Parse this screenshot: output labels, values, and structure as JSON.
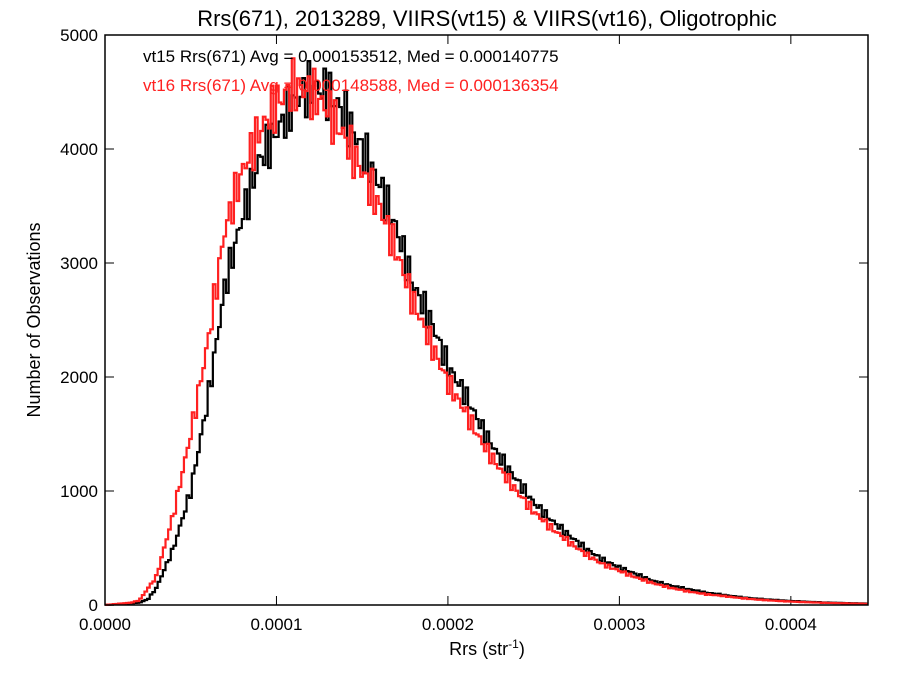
{
  "chart_data": {
    "type": "histogram",
    "title": "Rrs(671), 2013289, VIIRS(vt15) & VIIRS(vt16), Oligotrophic",
    "xlabel": "Rrs (str",
    "xlabel_sup": "-1",
    "xlabel_close": ")",
    "ylabel": "Number of Observations",
    "xlim": [
      0.0,
      0.000445
    ],
    "ylim": [
      0,
      5000
    ],
    "xticks": [
      0.0,
      0.0001,
      0.0002,
      0.0003,
      0.0004
    ],
    "xtick_labels": [
      "0.0000",
      "0.0001",
      "0.0002",
      "0.0003",
      "0.0004"
    ],
    "yticks": [
      0,
      1000,
      2000,
      3000,
      4000,
      5000
    ],
    "ytick_labels": [
      "0",
      "1000",
      "2000",
      "3000",
      "4000",
      "5000"
    ],
    "legend_placement": "top-left",
    "grid": false,
    "series": [
      {
        "name": "vt15",
        "label": "vt15 Rrs(671) Avg = 0.000153512, Med = 0.000140775",
        "color": "#000000",
        "points": [
          [
            0.0,
            0
          ],
          [
            2e-05,
            20
          ],
          [
            2.5e-05,
            50
          ],
          [
            3e-05,
            150
          ],
          [
            4e-05,
            500
          ],
          [
            5e-05,
            1000
          ],
          [
            6e-05,
            1800
          ],
          [
            7e-05,
            2800
          ],
          [
            8e-05,
            3400
          ],
          [
            9e-05,
            3900
          ],
          [
            0.0001,
            4150
          ],
          [
            0.00011,
            4400
          ],
          [
            0.00012,
            4550
          ],
          [
            0.00013,
            4500
          ],
          [
            0.00014,
            4300
          ],
          [
            0.00015,
            4000
          ],
          [
            0.00016,
            3700
          ],
          [
            0.00017,
            3300
          ],
          [
            0.00018,
            2800
          ],
          [
            0.00019,
            2500
          ],
          [
            0.0002,
            2100
          ],
          [
            0.00021,
            1850
          ],
          [
            0.00022,
            1550
          ],
          [
            0.00023,
            1300
          ],
          [
            0.00024,
            1100
          ],
          [
            0.00025,
            900
          ],
          [
            0.00026,
            750
          ],
          [
            0.00027,
            620
          ],
          [
            0.00028,
            500
          ],
          [
            0.00029,
            400
          ],
          [
            0.0003,
            330
          ],
          [
            0.00031,
            270
          ],
          [
            0.00032,
            210
          ],
          [
            0.00033,
            170
          ],
          [
            0.00034,
            140
          ],
          [
            0.00035,
            110
          ],
          [
            0.00036,
            90
          ],
          [
            0.00037,
            70
          ],
          [
            0.00038,
            55
          ],
          [
            0.00039,
            45
          ],
          [
            0.0004,
            35
          ],
          [
            0.00041,
            28
          ],
          [
            0.00042,
            22
          ],
          [
            0.00043,
            18
          ],
          [
            0.00044,
            14
          ],
          [
            0.000445,
            12
          ]
        ]
      },
      {
        "name": "vt16",
        "label": "vt16 Rrs(671) Avg = 0.000148588, Med = 0.000136354",
        "color": "#ff2020",
        "points": [
          [
            0.0,
            0
          ],
          [
            1.5e-05,
            20
          ],
          [
            2e-05,
            40
          ],
          [
            3e-05,
            250
          ],
          [
            4e-05,
            800
          ],
          [
            5e-05,
            1500
          ],
          [
            6e-05,
            2300
          ],
          [
            7e-05,
            3300
          ],
          [
            8e-05,
            3800
          ],
          [
            9e-05,
            4150
          ],
          [
            0.0001,
            4400
          ],
          [
            0.00011,
            4550
          ],
          [
            0.00012,
            4500
          ],
          [
            0.00013,
            4350
          ],
          [
            0.00014,
            4100
          ],
          [
            0.00015,
            3800
          ],
          [
            0.00016,
            3500
          ],
          [
            0.00017,
            3100
          ],
          [
            0.00018,
            2650
          ],
          [
            0.00019,
            2300
          ],
          [
            0.0002,
            1950
          ],
          [
            0.00021,
            1700
          ],
          [
            0.00022,
            1420
          ],
          [
            0.00023,
            1200
          ],
          [
            0.00024,
            1000
          ],
          [
            0.00025,
            820
          ],
          [
            0.00026,
            680
          ],
          [
            0.00027,
            560
          ],
          [
            0.00028,
            450
          ],
          [
            0.00029,
            360
          ],
          [
            0.0003,
            300
          ],
          [
            0.00031,
            240
          ],
          [
            0.00032,
            190
          ],
          [
            0.00033,
            150
          ],
          [
            0.00034,
            120
          ],
          [
            0.00035,
            95
          ],
          [
            0.00036,
            80
          ],
          [
            0.00037,
            62
          ],
          [
            0.00038,
            48
          ],
          [
            0.00039,
            38
          ],
          [
            0.0004,
            30
          ],
          [
            0.00041,
            24
          ],
          [
            0.00042,
            19
          ],
          [
            0.00043,
            15
          ],
          [
            0.00044,
            12
          ],
          [
            0.000445,
            10
          ]
        ]
      }
    ]
  }
}
